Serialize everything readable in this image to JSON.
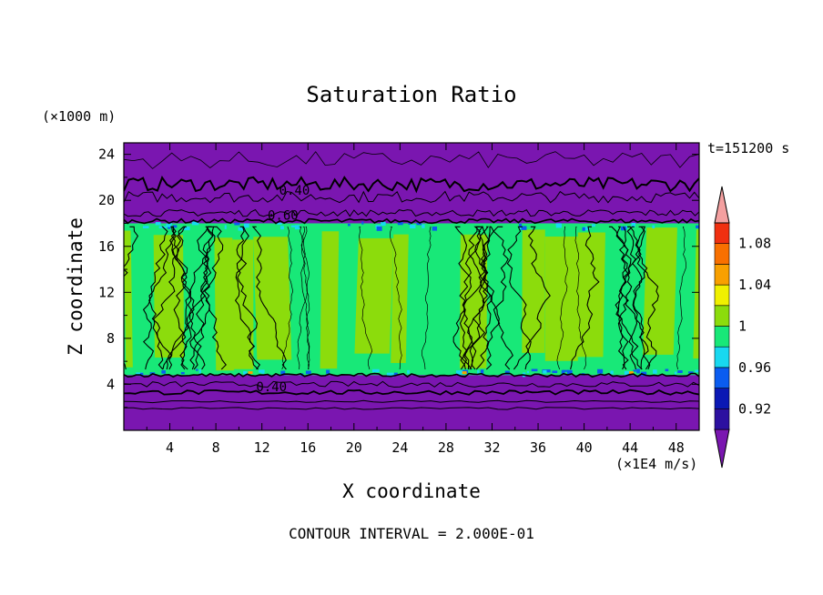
{
  "chart_data": {
    "type": "heatmap",
    "title": "Saturation Ratio",
    "xlabel": "X coordinate",
    "ylabel": "Z coordinate",
    "x_unit": "(×1E4 m/s)",
    "y_unit": "(×1000 m)",
    "time_label": "t=151200 s",
    "footer": "CONTOUR INTERVAL = 2.000E-01",
    "xlim": [
      0,
      50
    ],
    "ylim": [
      0,
      25
    ],
    "x_ticks": [
      4,
      8,
      12,
      16,
      20,
      24,
      28,
      32,
      36,
      40,
      44,
      48
    ],
    "y_ticks": [
      4,
      8,
      12,
      16,
      20,
      24
    ],
    "colorbar": {
      "levels": [
        0.92,
        0.96,
        1,
        1.04,
        1.08
      ],
      "colors": [
        "#7a16b0",
        "#2c10a0",
        "#0a18b4",
        "#0a5cf0",
        "#18d8f0",
        "#18e878",
        "#8cdc0c",
        "#f0f000",
        "#f8a000",
        "#f87000",
        "#f03010",
        "#f4a0a0"
      ]
    },
    "contour_labels": [
      {
        "text": "0.40",
        "x": 13.5,
        "y": 20.5
      },
      {
        "text": "0.60",
        "x": 12.5,
        "y": 18.3
      },
      {
        "text": "0.40",
        "x": 11.5,
        "y": 3.4
      }
    ],
    "regions": [
      {
        "name": "upper dry layer",
        "z": [
          18,
          25
        ],
        "value": "<0.92"
      },
      {
        "name": "cloud layer",
        "z": [
          4.8,
          18
        ],
        "value": "0.96-1.04"
      },
      {
        "name": "lower dry layer",
        "z": [
          0,
          4.8
        ],
        "value": "<0.92"
      }
    ]
  }
}
